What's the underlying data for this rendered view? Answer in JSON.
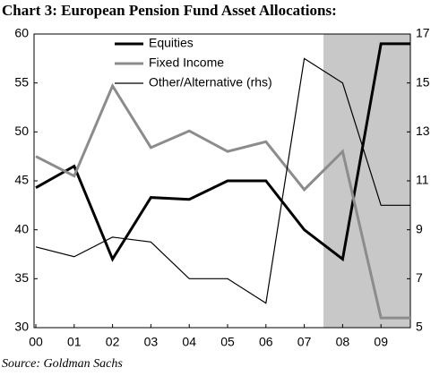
{
  "chart_data": {
    "type": "line",
    "title": "Chart 3:  European Pension Fund Asset Allocations:",
    "source": "Source:  Goldman Sachs",
    "categories": [
      "00",
      "01",
      "02",
      "03",
      "04",
      "05",
      "06",
      "07",
      "08",
      "09"
    ],
    "series": [
      {
        "name": "Equities",
        "color": "#000000",
        "values": [
          44.3,
          46.5,
          37,
          43.3,
          43.1,
          45,
          45,
          40,
          37,
          59
        ]
      },
      {
        "name": "Fixed Income",
        "color": "#8c8c8c",
        "values": [
          47.5,
          45.5,
          54.7,
          48.4,
          50.1,
          48,
          49,
          44.1,
          48,
          31
        ]
      },
      {
        "name": "Other/Alternative (rhs)",
        "color": "#000000",
        "axis": "y2",
        "values": [
          8.3,
          7.9,
          8.7,
          8.5,
          7,
          7,
          6,
          16,
          15,
          10
        ]
      }
    ],
    "shaded_categories": [
      "08",
      "09"
    ],
    "shade_color": "#c8c8c8",
    "ylim": [
      30,
      60
    ],
    "yticks": [
      30,
      35,
      40,
      45,
      50,
      55,
      60
    ],
    "y2lim": [
      5,
      17
    ],
    "y2ticks": [
      5,
      7,
      9,
      11,
      13,
      15,
      17
    ],
    "legend": "upper-left"
  }
}
